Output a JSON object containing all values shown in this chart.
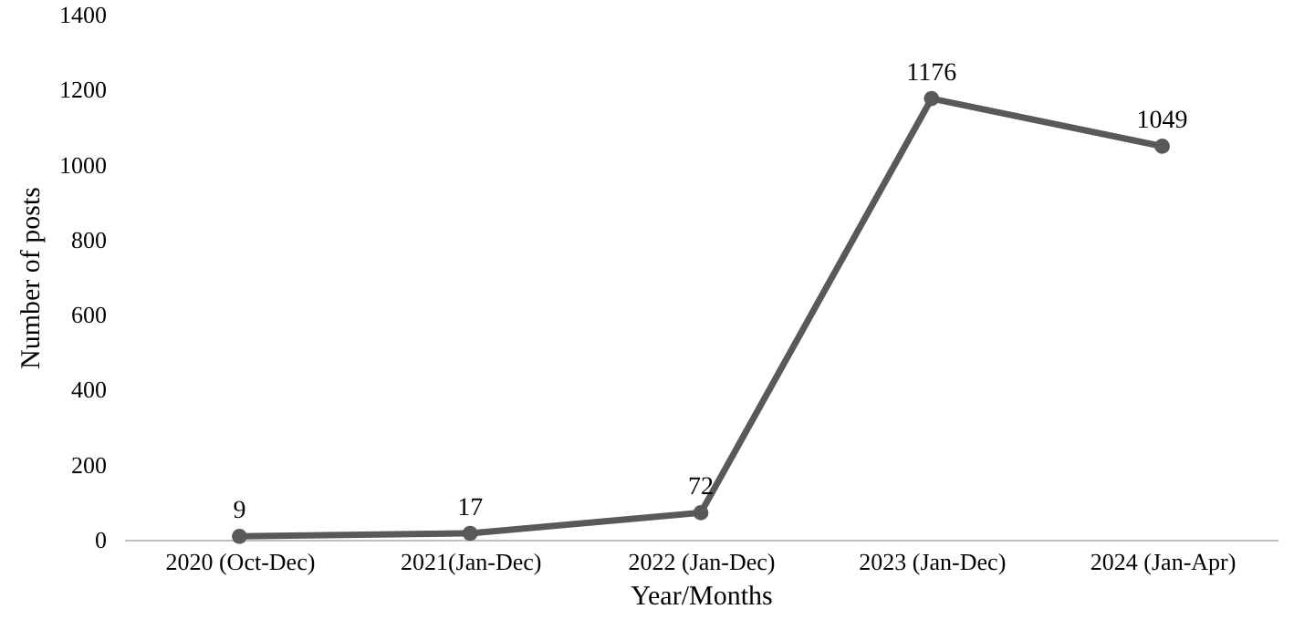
{
  "chart_data": {
    "type": "line",
    "xlabel": "Year/Months",
    "ylabel": "Number of posts",
    "categories": [
      "2020 (Oct-Dec)",
      "2021(Jan-Dec)",
      "2022 (Jan-Dec)",
      "2023 (Jan-Dec)",
      "2024 (Jan-Apr)"
    ],
    "series": [
      {
        "color": "#595959",
        "values": [
          9,
          17,
          72,
          1176,
          1049
        ]
      }
    ],
    "ylim": [
      0,
      1400
    ],
    "yticks": [
      0,
      200,
      400,
      600,
      800,
      1000,
      1200,
      1400
    ],
    "grid": false,
    "marker": "circle",
    "line_style": "solid",
    "data_labels": true
  }
}
